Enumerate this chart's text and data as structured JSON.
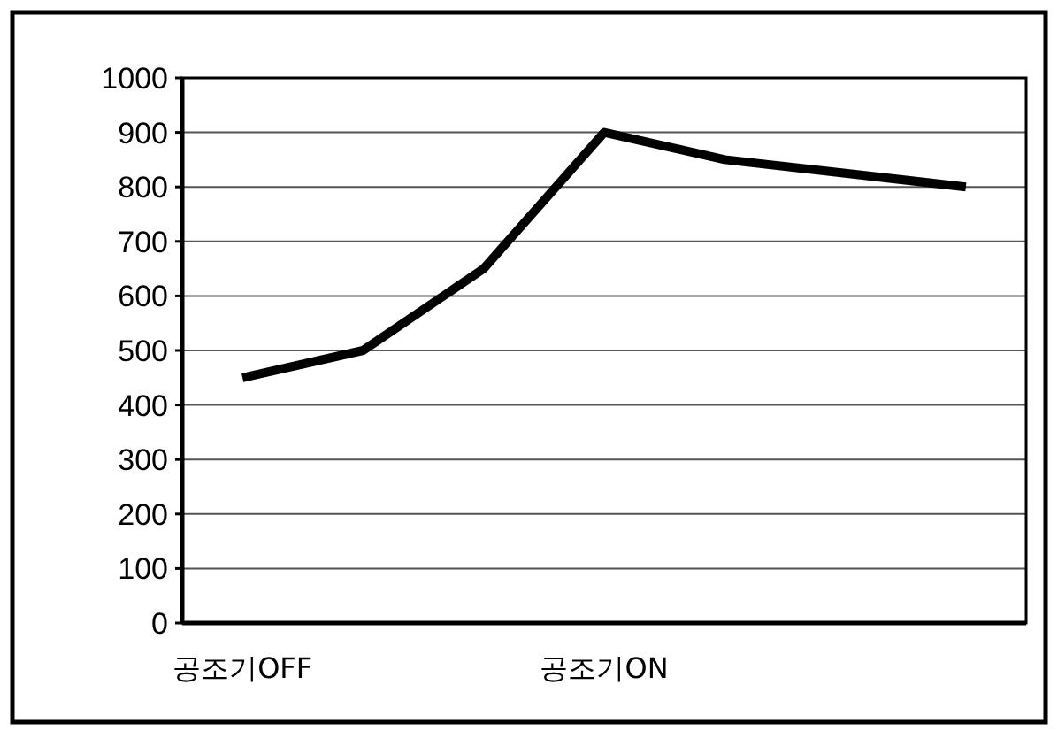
{
  "chart_data": {
    "type": "line",
    "categories": [
      "공조기OFF",
      null,
      null,
      "공조기ON",
      null,
      null,
      null
    ],
    "series": [
      {
        "color": "#000000",
        "values": [
          450,
          500,
          650,
          900,
          850,
          825,
          800
        ]
      }
    ],
    "ylim": [
      0,
      1000
    ],
    "yticks": [
      0,
      100,
      200,
      300,
      400,
      500,
      600,
      700,
      800,
      900,
      1000
    ],
    "grid": "y",
    "marker": "none",
    "line_style": "solid"
  }
}
